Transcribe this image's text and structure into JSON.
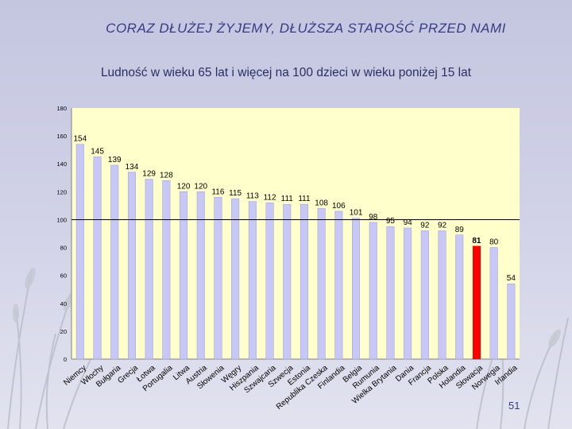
{
  "title": "CORAZ DŁUŻEJ ŻYJEMY, DŁUŻSZA STAROŚĆ PRZED NAMI",
  "subtitle": "Ludność w wieku 65 lat i więcej na 100 dzieci w wieku poniżej 15 lat",
  "page_number": "51",
  "colors": {
    "plot_bg": "#ffffcc",
    "bar": "#c8c8f8",
    "bar_highlight": "#ff0000",
    "reference_line": "#000000",
    "title": "#3a3a82"
  },
  "chart_data": {
    "type": "bar",
    "title": "Ludność w wieku 65 lat i więcej na 100 dzieci w wieku poniżej 15 lat",
    "xlabel": "",
    "ylabel": "",
    "ylim": [
      0,
      180
    ],
    "yticks": [
      0,
      20,
      40,
      60,
      80,
      100,
      120,
      140,
      160,
      180
    ],
    "reference_line": 100,
    "grid": false,
    "highlight_index": 23,
    "categories": [
      "Niemcy",
      "Włochy",
      "Bułgaria",
      "Grecja",
      "Łotwa",
      "Portugalia",
      "Litwa",
      "Austria",
      "Słowenia",
      "Węgry",
      "Hiszpania",
      "Szwajcaria",
      "Szwecja",
      "Estonia",
      "Republika Czeska",
      "Finlandia",
      "Belgia",
      "Rumunia",
      "Wielka Brytania",
      "Dania",
      "Francja",
      "Polska",
      "Holandia",
      "Słowacja",
      "Norwegia",
      "Irlandia"
    ],
    "values": [
      154,
      145,
      139,
      134,
      129,
      128,
      120,
      120,
      116,
      115,
      113,
      112,
      111,
      111,
      108,
      106,
      101,
      98,
      95,
      94,
      92,
      92,
      89,
      81,
      80,
      54
    ]
  }
}
